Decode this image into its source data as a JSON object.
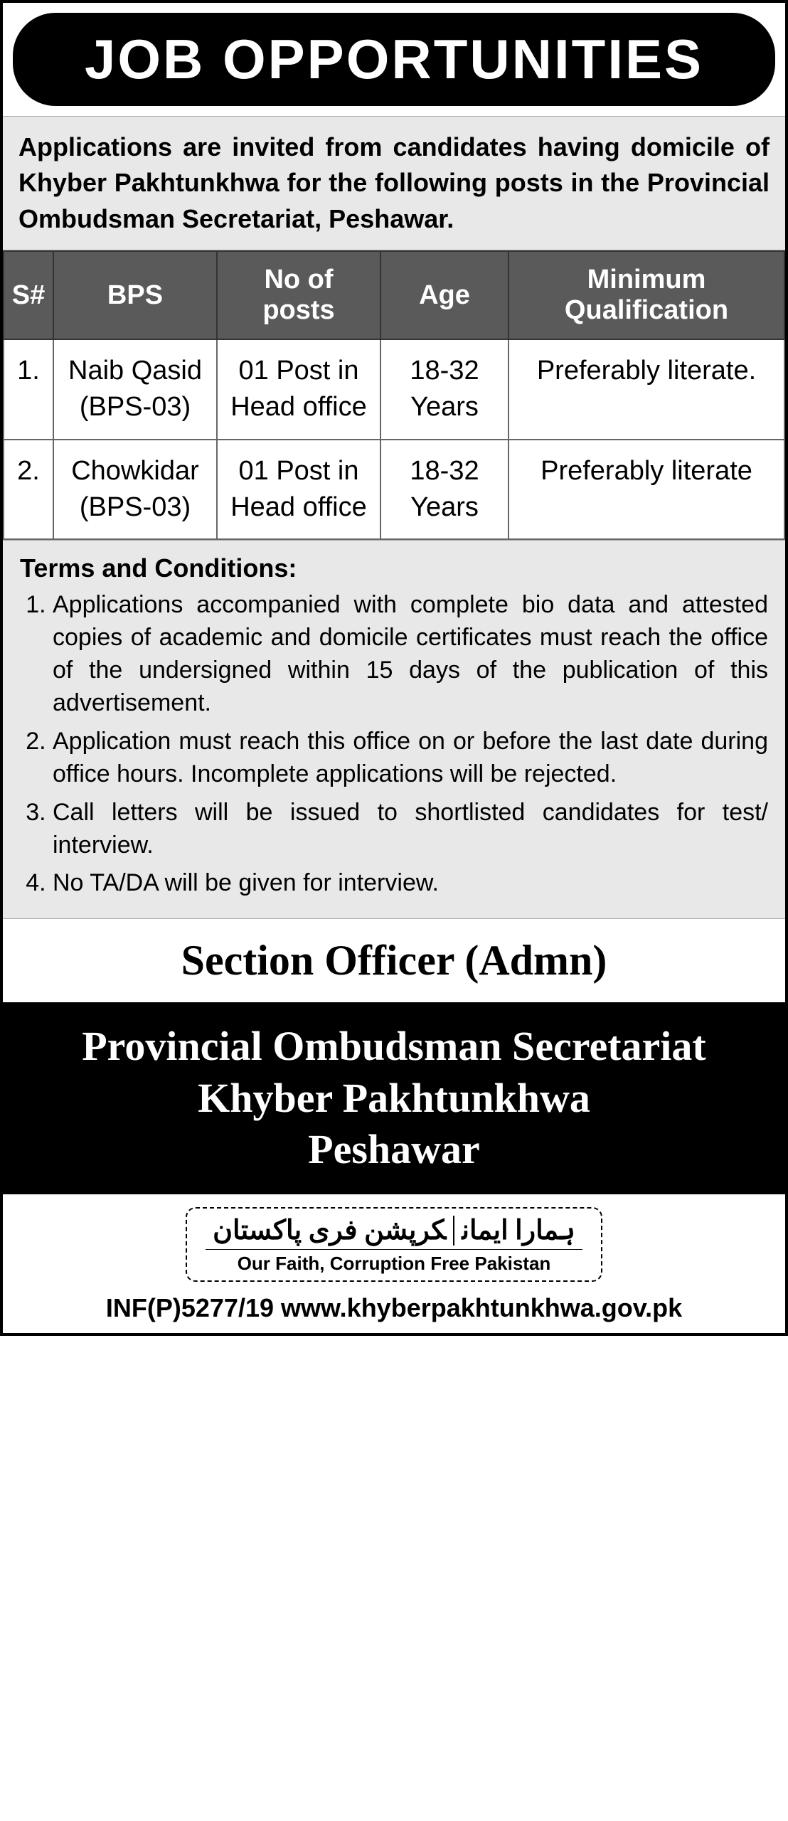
{
  "title": "JOB OPPORTUNITIES",
  "intro": "Applications are invited from candidates having domicile of Khyber Pakhtunkhwa for the following posts in the Provincial Ombudsman Secretariat, Peshawar.",
  "table": {
    "headers": {
      "sno": "S#",
      "bps": "BPS",
      "posts": "No of posts",
      "age": "Age",
      "qual": "Minimum Qualification"
    },
    "rows": [
      {
        "sno": "1.",
        "bps": "Naib Qasid (BPS-03)",
        "posts": "01 Post in Head office",
        "age": "18-32 Years",
        "qual": "Preferably literate."
      },
      {
        "sno": "2.",
        "bps": "Chowkidar (BPS-03)",
        "posts": "01 Post in Head office",
        "age": "18-32 Years",
        "qual": "Preferably literate"
      }
    ]
  },
  "terms": {
    "heading": "Terms and Conditions:",
    "items": [
      "Applications accompanied with complete bio data and attested copies of academic and domicile certificates must reach the office of the undersigned within 15 days of the publication of this advertisement.",
      "Application must reach this office on or before the last date during office hours. Incomplete applications will be rejected.",
      "Call letters will be issued to shortlisted candidates for test/ interview.",
      "No TA/DA will be given for interview."
    ]
  },
  "officer": "Section Officer (Admn)",
  "org": {
    "line1": "Provincial Ombudsman Secretariat",
    "line2": "Khyber Pakhtunkhwa",
    "line3": "Peshawar"
  },
  "slogan": {
    "urdu_part1": "ہمارا ایمان",
    "urdu_part2": "کرپشن فری پاکستان",
    "english": "Our Faith, Corruption Free Pakistan"
  },
  "reference": "INF(P)5277/19 www.khyberpakhtunkhwa.gov.pk",
  "colors": {
    "banner_bg": "#000000",
    "banner_text": "#ffffff",
    "section_bg": "#e8e8e8",
    "header_bg": "#5a5a5a",
    "border": "#333333"
  }
}
